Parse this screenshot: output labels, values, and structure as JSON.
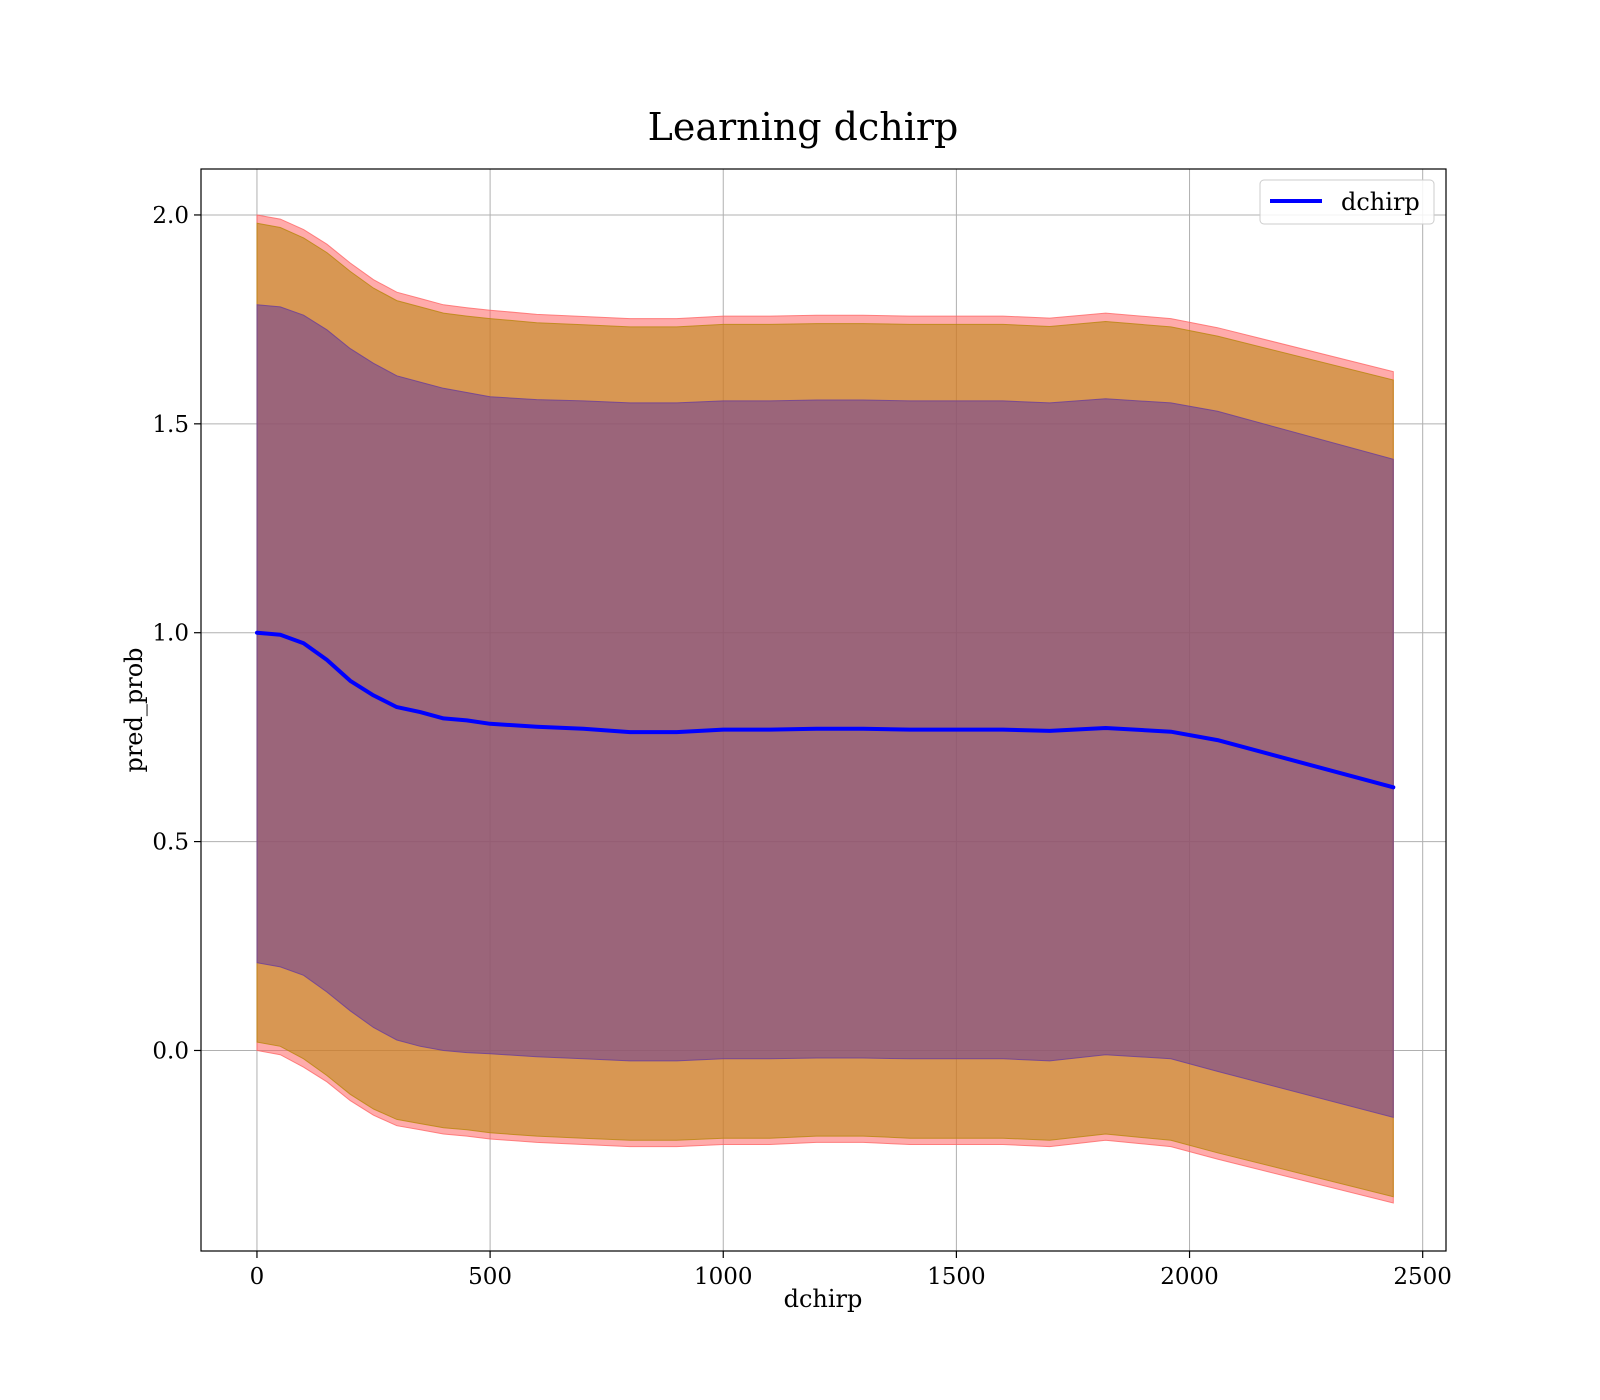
{
  "chart_data": {
    "type": "line",
    "title": "Learning dchirp",
    "xlabel": "dchirp",
    "ylabel": "pred_prob",
    "xlim": [
      -120,
      2550
    ],
    "ylim": [
      -0.48,
      2.11
    ],
    "xticks": [
      0,
      500,
      1000,
      1500,
      2000,
      2500
    ],
    "xtick_labels": [
      "0",
      "500",
      "1000",
      "1500",
      "2000",
      "2500"
    ],
    "yticks": [
      0.0,
      0.5,
      1.0,
      1.5,
      2.0
    ],
    "ytick_labels": [
      "0.0",
      "0.5",
      "1.0",
      "1.5",
      "2.0"
    ],
    "grid": true,
    "legend": {
      "position": "top-right",
      "entries": [
        "dchirp"
      ]
    },
    "colors": {
      "line": "#0000ff",
      "outer_band": "#ff6666",
      "middle_band": "#b8860b",
      "inner_band": "#6a3d9a"
    },
    "series": [
      {
        "name": "dchirp",
        "x": [
          0,
          50,
          100,
          150,
          200,
          250,
          300,
          350,
          400,
          450,
          500,
          600,
          700,
          800,
          900,
          1000,
          1100,
          1200,
          1300,
          1400,
          1500,
          1600,
          1700,
          1820,
          1960,
          2060,
          2437
        ],
        "y": [
          1.0,
          0.995,
          0.975,
          0.935,
          0.885,
          0.85,
          0.822,
          0.81,
          0.795,
          0.79,
          0.782,
          0.775,
          0.77,
          0.762,
          0.762,
          0.768,
          0.768,
          0.77,
          0.77,
          0.768,
          0.768,
          0.768,
          0.765,
          0.772,
          0.763,
          0.743,
          0.63
        ]
      }
    ],
    "bands": [
      {
        "x": [
          0,
          50,
          100,
          150,
          200,
          250,
          300,
          350,
          400,
          450,
          500,
          600,
          700,
          800,
          900,
          1000,
          1100,
          1200,
          1300,
          1400,
          1500,
          1600,
          1700,
          1820,
          1960,
          2060,
          2437
        ],
        "lower": [
          0.0,
          -0.01,
          -0.04,
          -0.075,
          -0.12,
          -0.155,
          -0.18,
          -0.19,
          -0.2,
          -0.205,
          -0.212,
          -0.22,
          -0.225,
          -0.23,
          -0.23,
          -0.225,
          -0.225,
          -0.22,
          -0.22,
          -0.225,
          -0.225,
          -0.225,
          -0.23,
          -0.215,
          -0.23,
          -0.26,
          -0.365
        ],
        "upper": [
          2.0,
          1.99,
          1.965,
          1.93,
          1.885,
          1.845,
          1.815,
          1.8,
          1.785,
          1.778,
          1.772,
          1.762,
          1.757,
          1.752,
          1.752,
          1.758,
          1.758,
          1.76,
          1.76,
          1.758,
          1.758,
          1.758,
          1.753,
          1.765,
          1.752,
          1.73,
          1.625
        ]
      },
      {
        "x": [
          0,
          50,
          100,
          150,
          200,
          250,
          300,
          350,
          400,
          450,
          500,
          600,
          700,
          800,
          900,
          1000,
          1100,
          1200,
          1300,
          1400,
          1500,
          1600,
          1700,
          1820,
          1960,
          2060,
          2437
        ],
        "lower": [
          0.02,
          0.01,
          -0.02,
          -0.06,
          -0.105,
          -0.14,
          -0.165,
          -0.175,
          -0.185,
          -0.19,
          -0.197,
          -0.205,
          -0.21,
          -0.215,
          -0.215,
          -0.21,
          -0.21,
          -0.205,
          -0.205,
          -0.21,
          -0.21,
          -0.21,
          -0.215,
          -0.2,
          -0.215,
          -0.245,
          -0.35
        ],
        "upper": [
          1.98,
          1.97,
          1.945,
          1.91,
          1.865,
          1.825,
          1.795,
          1.78,
          1.765,
          1.758,
          1.752,
          1.742,
          1.737,
          1.732,
          1.732,
          1.738,
          1.738,
          1.74,
          1.74,
          1.738,
          1.738,
          1.738,
          1.733,
          1.745,
          1.732,
          1.71,
          1.605
        ]
      },
      {
        "x": [
          0,
          50,
          100,
          150,
          200,
          250,
          300,
          350,
          400,
          450,
          500,
          600,
          700,
          800,
          900,
          1000,
          1100,
          1200,
          1300,
          1400,
          1500,
          1600,
          1700,
          1820,
          1960,
          2060,
          2437
        ],
        "lower": [
          0.21,
          0.2,
          0.18,
          0.14,
          0.095,
          0.055,
          0.025,
          0.01,
          0.0,
          -0.005,
          -0.008,
          -0.015,
          -0.02,
          -0.025,
          -0.025,
          -0.02,
          -0.02,
          -0.018,
          -0.018,
          -0.02,
          -0.02,
          -0.02,
          -0.025,
          -0.01,
          -0.02,
          -0.05,
          -0.16
        ],
        "upper": [
          1.785,
          1.78,
          1.76,
          1.725,
          1.68,
          1.645,
          1.615,
          1.6,
          1.585,
          1.575,
          1.565,
          1.558,
          1.555,
          1.55,
          1.55,
          1.555,
          1.555,
          1.557,
          1.557,
          1.555,
          1.555,
          1.555,
          1.55,
          1.56,
          1.55,
          1.53,
          1.415
        ]
      }
    ]
  }
}
